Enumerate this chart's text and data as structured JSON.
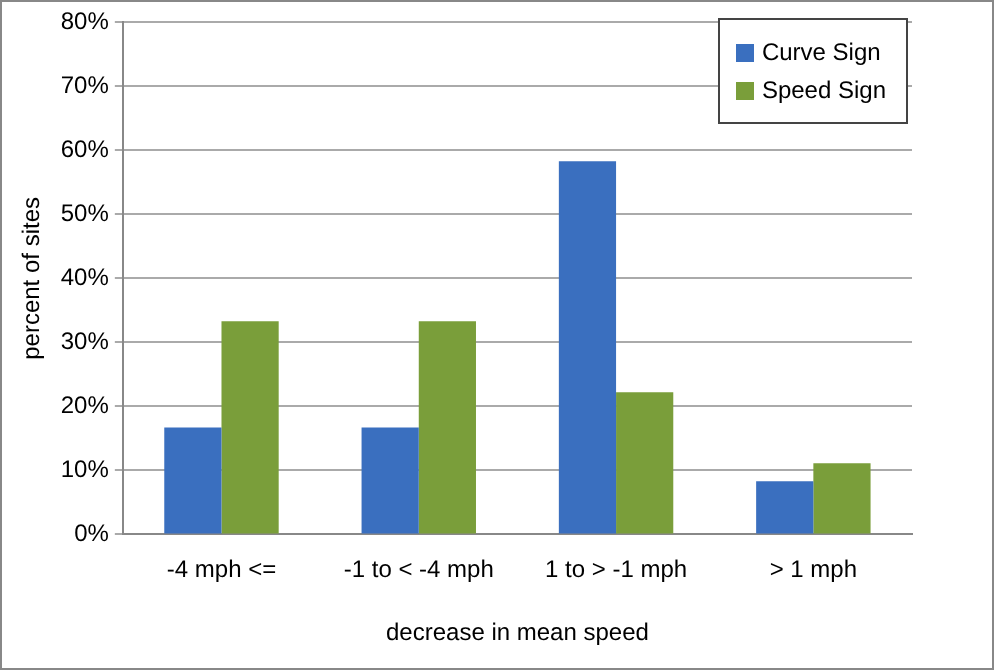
{
  "chart_data": {
    "type": "bar",
    "xlabel": "decrease in mean speed",
    "ylabel": "percent of sites",
    "categories": [
      "-4 mph <=",
      "-1 to < -4 mph",
      "1 to > -1 mph",
      "> 1 mph"
    ],
    "series": [
      {
        "name": "Curve Sign",
        "color": "#3a6fbf",
        "values": [
          16.7,
          16.7,
          58.3,
          8.3
        ]
      },
      {
        "name": "Speed Sign",
        "color": "#7a9e3a",
        "values": [
          33.3,
          33.3,
          22.2,
          11.1
        ]
      }
    ],
    "ylim": [
      0,
      80
    ],
    "yticks": [
      {
        "value": 0,
        "label": "0%"
      },
      {
        "value": 10,
        "label": "10%"
      },
      {
        "value": 20,
        "label": "20%"
      },
      {
        "value": 30,
        "label": "30%"
      },
      {
        "value": 40,
        "label": "40%"
      },
      {
        "value": 50,
        "label": "50%"
      },
      {
        "value": 60,
        "label": "60%"
      },
      {
        "value": 70,
        "label": "70%"
      },
      {
        "value": 80,
        "label": "80%"
      }
    ],
    "grid": "y",
    "legend": "top right"
  }
}
